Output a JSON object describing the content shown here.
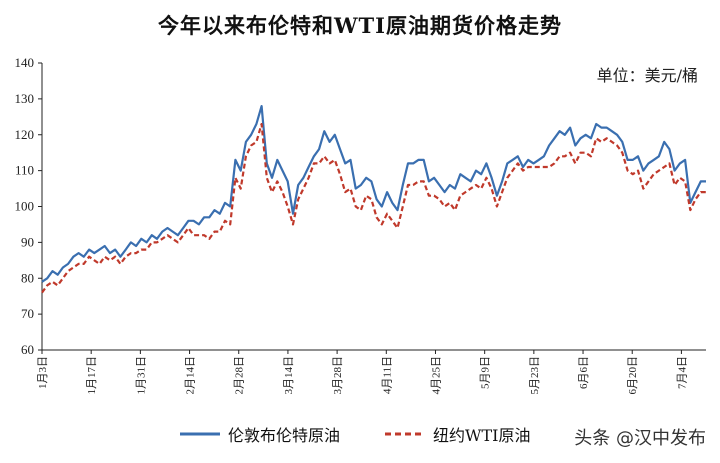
{
  "chart_data": {
    "type": "line",
    "title": "今年以来布伦特和WTI原油期货价格走势",
    "unit_label": "单位：美元/桶",
    "ylim": [
      60,
      140
    ],
    "yticks": [
      60,
      70,
      80,
      90,
      100,
      110,
      120,
      130,
      140
    ],
    "xticks": [
      "1月3日",
      "1月17日",
      "1月31日",
      "2月14日",
      "2月28日",
      "3月14日",
      "3月28日",
      "4月11日",
      "4月25日",
      "5月9日",
      "5月23日",
      "6月6日",
      "6月20日",
      "7月4日"
    ],
    "grid": false,
    "legend_position": "bottom",
    "colors": {
      "brent": "#3a6fb0",
      "wti": "#c0392b"
    },
    "series": [
      {
        "name": "伦敦布伦特原油",
        "style": "solid",
        "values": [
          79,
          80,
          82,
          81,
          83,
          84,
          86,
          87,
          86,
          88,
          87,
          88,
          89,
          87,
          88,
          86,
          88,
          90,
          89,
          91,
          90,
          92,
          91,
          93,
          94,
          93,
          92,
          94,
          96,
          96,
          95,
          97,
          97,
          99,
          98,
          101,
          100,
          113,
          110,
          118,
          120,
          123,
          128,
          112,
          108,
          113,
          110,
          107,
          98,
          106,
          108,
          111,
          114,
          116,
          121,
          118,
          120,
          116,
          112,
          113,
          105,
          106,
          108,
          107,
          102,
          100,
          104,
          101,
          99,
          106,
          112,
          112,
          113,
          113,
          107,
          108,
          106,
          104,
          106,
          105,
          109,
          108,
          107,
          110,
          109,
          112,
          108,
          103,
          107,
          112,
          113,
          114,
          111,
          113,
          112,
          113,
          114,
          117,
          119,
          121,
          120,
          122,
          117,
          119,
          120,
          119,
          123,
          122,
          122,
          121,
          120,
          118,
          113,
          113,
          114,
          110,
          112,
          113,
          114,
          118,
          116,
          110,
          112,
          113,
          101,
          104,
          107,
          107
        ]
      },
      {
        "name": "纽约WTI原油",
        "style": "dashed",
        "values": [
          76,
          78,
          79,
          78,
          80,
          82,
          83,
          84,
          84,
          86,
          85,
          84,
          86,
          85,
          86,
          84,
          86,
          87,
          87,
          88,
          88,
          90,
          90,
          91,
          92,
          91,
          90,
          92,
          94,
          92,
          92,
          92,
          91,
          93,
          93,
          96,
          95,
          108,
          105,
          114,
          117,
          118,
          123,
          108,
          104,
          107,
          104,
          100,
          95,
          102,
          105,
          108,
          112,
          112,
          114,
          112,
          113,
          109,
          104,
          105,
          100,
          99,
          103,
          102,
          97,
          95,
          98,
          96,
          94,
          100,
          106,
          106,
          107,
          107,
          103,
          103,
          102,
          100,
          101,
          99,
          103,
          104,
          105,
          106,
          105,
          108,
          105,
          100,
          104,
          108,
          110,
          112,
          110,
          111,
          111,
          111,
          111,
          111,
          112,
          114,
          114,
          115,
          112,
          115,
          115,
          114,
          119,
          118,
          119,
          118,
          117,
          115,
          110,
          109,
          110,
          105,
          107,
          109,
          110,
          111,
          112,
          106,
          108,
          107,
          99,
          102,
          104,
          104
        ]
      }
    ]
  },
  "legend": {
    "brent": "伦敦布伦特原油",
    "wti": "纽约WTI原油"
  },
  "watermark": "头条 @汉中发布"
}
